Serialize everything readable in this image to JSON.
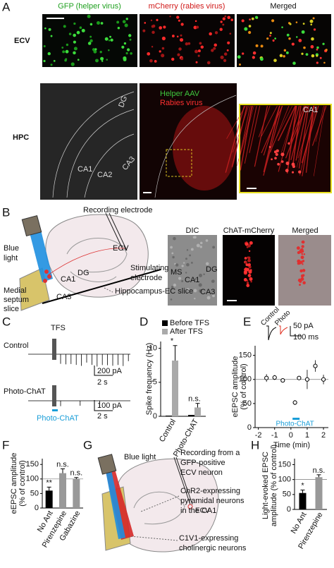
{
  "panel_a": {
    "label": "A",
    "headers": [
      "GFP (helper virus)",
      "mCherry (rabies virus)",
      "Merged"
    ],
    "rows": [
      "ECV",
      "HPC"
    ],
    "hpc_labels": [
      "DG",
      "CA1",
      "CA2",
      "CA3"
    ],
    "overlay": [
      "Helper AAV",
      "Rabies virus"
    ],
    "zoom_label": "CA1"
  },
  "panel_b": {
    "label": "B",
    "recording": "Recording electrode",
    "light": [
      "Blue",
      "light"
    ],
    "ecv": "ECV",
    "stim": [
      "Stimulating",
      "electrode"
    ],
    "dg": "DG",
    "ca1": "CA1",
    "ca3": "CA3",
    "septum": [
      "Medial",
      "septum",
      "slice"
    ],
    "hippo": "Hippocampus-EC slice",
    "image_headers": [
      "DIC",
      "ChAT-mCherry",
      "Merged"
    ],
    "image_labels": [
      "MS",
      "CA1",
      "DG",
      "CA3"
    ]
  },
  "panel_c": {
    "label": "C",
    "stim": "TFS",
    "traces": [
      "Control",
      "Photo-ChAT"
    ],
    "scale_1": [
      "200 pA",
      "2 s"
    ],
    "scale_2": [
      "100 pA",
      "2 s"
    ],
    "light": "Photo-ChAT"
  },
  "chart_d": {
    "type": "bar",
    "label": "D",
    "y_label": [
      "Spike frequency (Hz)"
    ],
    "categories": [
      "Control",
      "Photo-ChAT"
    ],
    "series": [
      {
        "name": "Before TFS",
        "color": "#000000",
        "values": [
          0.1,
          0.2
        ]
      },
      {
        "name": "After TFS",
        "color": "#aaaaaa",
        "values": [
          8.2,
          1.3
        ],
        "errors": [
          2.2,
          0.6
        ]
      }
    ],
    "ylim": [
      0,
      11
    ],
    "yticks": [
      0,
      5,
      10
    ],
    "annotations": [
      "*",
      "n.s."
    ]
  },
  "chart_e": {
    "type": "scatter",
    "label": "E",
    "y_label": [
      "eEPSC amplitude",
      "(% of control)"
    ],
    "x_label": "Time (min)",
    "inset": [
      "Control",
      "Photo"
    ],
    "scale": [
      "50 pA",
      "100 ms"
    ],
    "light": "Photo-ChAT",
    "x": [
      -1.5,
      -1,
      -0.5,
      0.25,
      0.5,
      1,
      1.5,
      2
    ],
    "values": [
      103,
      104,
      98,
      52,
      103,
      100,
      128,
      100
    ],
    "errors": [
      8,
      5,
      3,
      5,
      4,
      20,
      12,
      10
    ],
    "xlim": [
      -2.2,
      2.3
    ],
    "xticks": [
      -2,
      -1,
      0,
      1,
      2
    ],
    "ylim": [
      0,
      170
    ],
    "yticks": [
      0,
      50,
      100,
      150
    ],
    "reference": 100
  },
  "chart_f": {
    "type": "bar",
    "label": "F",
    "y_label": [
      "eEPSC amplitude",
      "(% of control)"
    ],
    "categories": [
      "No Ant",
      "Pirenzepine",
      "Gabazine"
    ],
    "values": [
      60,
      120,
      100
    ],
    "errors": [
      12,
      15,
      5
    ],
    "colors": [
      "#000000",
      "#999999",
      "#999999"
    ],
    "annotations": [
      "**",
      "n.s.",
      "n.s."
    ],
    "ylim": [
      0,
      170
    ],
    "yticks": [
      0,
      50,
      100,
      150
    ],
    "reference": 100
  },
  "panel_g": {
    "label": "G",
    "light": "Blue light",
    "recording": [
      "Recording from a",
      "GFP-positive",
      "ECV neuron"
    ],
    "ecv": "ECV",
    "chr2": [
      "ChR2-expressing",
      "pyramidal neurons",
      "in the CA1"
    ],
    "c1v1": [
      "C1V1-expressing",
      "cholinergic neurons"
    ]
  },
  "chart_h": {
    "type": "bar",
    "label": "H",
    "y_label": [
      "Light-evoked EPSC",
      "amplitude (% of control)"
    ],
    "categories": [
      "No Ant",
      "Pirenzepine"
    ],
    "values": [
      55,
      108
    ],
    "errors": [
      10,
      8
    ],
    "colors": [
      "#000000",
      "#999999"
    ],
    "annotations": [
      "*",
      "n.s."
    ],
    "ylim": [
      0,
      170
    ],
    "yticks": [
      0,
      50,
      100,
      150
    ],
    "reference": 100
  }
}
